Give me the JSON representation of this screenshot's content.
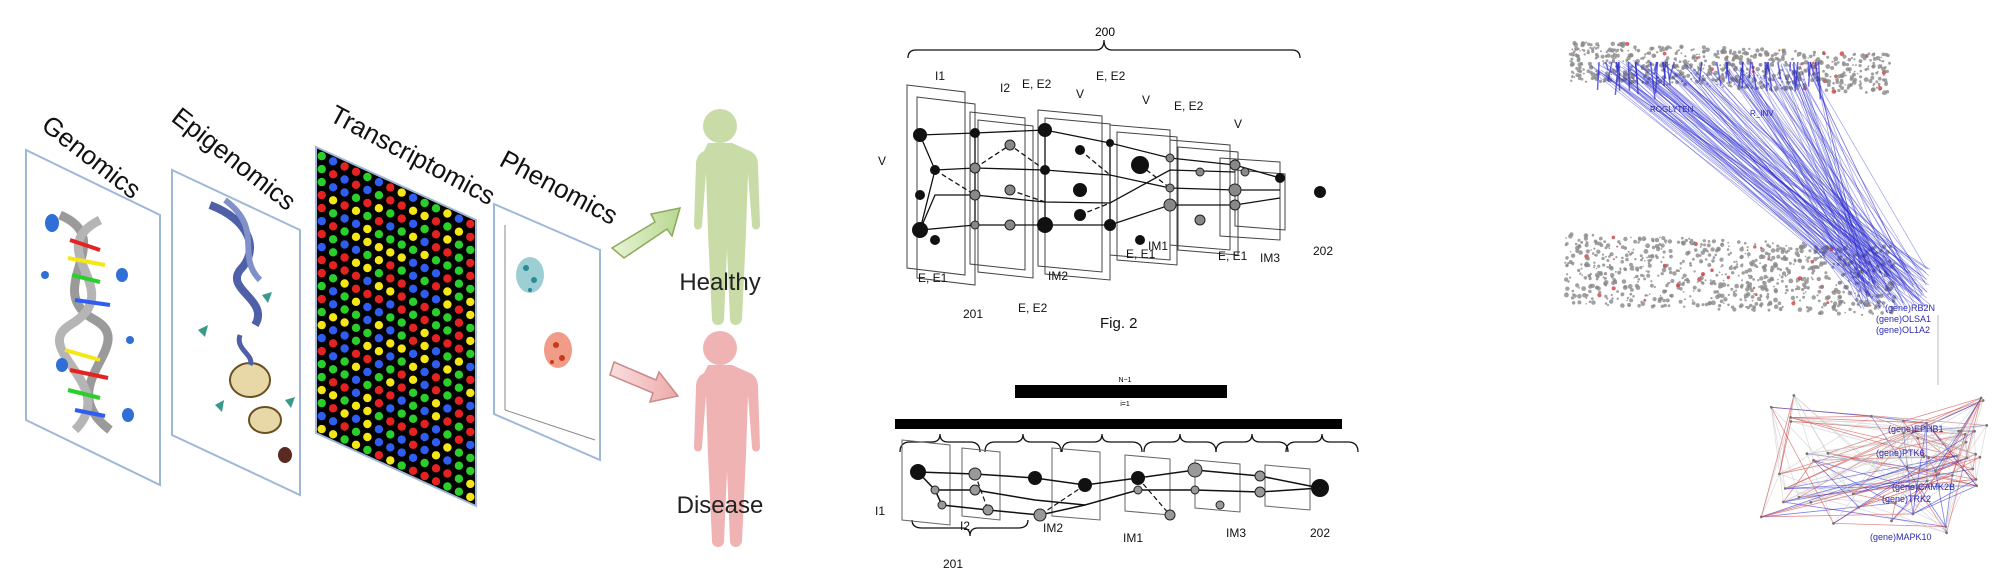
{
  "left": {
    "sheets": [
      {
        "label": "Genomics"
      },
      {
        "label": "Epigenomics"
      },
      {
        "label": "Transcriptomics"
      },
      {
        "label": "Phenomics"
      }
    ],
    "outcomes": [
      {
        "label": "Healthy",
        "color": "#c9dba6",
        "arrow_color": "#c7e0a0"
      },
      {
        "label": "Disease",
        "color": "#efb3b3",
        "arrow_color": "#f2b8b8"
      }
    ],
    "array_colors": [
      "#e52222",
      "#2bcf2b",
      "#2f5df0",
      "#f5e617"
    ]
  },
  "middle": {
    "fig_caption": "Fig. 2",
    "top": {
      "brace_label": "200",
      "labels": {
        "I1": "I1",
        "I2": "I2",
        "E_E2_a": "E, E2",
        "V_a": "V",
        "E_E2_b": "E, E2",
        "V_b": "V",
        "E_E2_c": "E, E2",
        "V_c": "V",
        "V_left": "V",
        "E_E1_a": "E, E1",
        "n201": "201",
        "E_E2_d": "E, E2",
        "IM2": "IM2",
        "E_E1_b": "E, E1",
        "IM1": "IM1",
        "E_E1_c": "E, E1",
        "IM3": "IM3",
        "n202": "202"
      }
    },
    "bottom": {
      "formula_top": "N−1",
      "formula_bottom": "i=1",
      "labels": {
        "I1": "I1",
        "I2": "I2",
        "n201": "201",
        "IM2": "IM2",
        "IM1": "IM1",
        "IM3": "IM3",
        "n202": "202"
      }
    }
  },
  "right": {
    "gene_labels": [
      "(gene)EPHB1",
      "(gene)PTK6",
      "(gene)CAMK2B",
      "(gene)TRK2",
      "(gene)MAPK10",
      "(gene)OLSA1",
      "(gene)OL1A2",
      "(gene)RB2N"
    ],
    "top_cloud_labels": [
      "ROGLYTEN",
      "R_INV"
    ],
    "colors": {
      "edge_blue": "#2a2ad0",
      "edge_red": "#d04040",
      "cloud": "#8a8a8a"
    }
  }
}
